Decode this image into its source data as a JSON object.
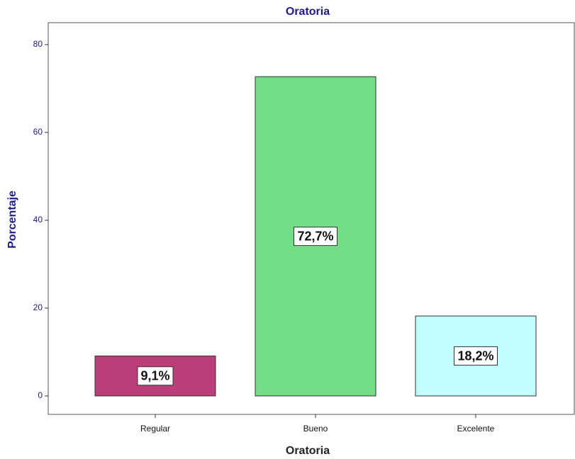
{
  "chart_data": {
    "type": "bar",
    "title": "Oratoria",
    "x_label": "Oratoria",
    "y_label": "Porcentaje",
    "categories": [
      "Regular",
      "Bueno",
      "Excelente"
    ],
    "values": [
      9.1,
      72.7,
      18.2
    ],
    "value_labels": [
      "9,1%",
      "72,7%",
      "18,2%"
    ],
    "colors": [
      "#bc3e78",
      "#72dd86",
      "#c2fefe"
    ],
    "ylim": [
      -4.2,
      85
    ],
    "yticks": [
      0,
      20,
      40,
      60,
      80
    ],
    "grid": false
  }
}
